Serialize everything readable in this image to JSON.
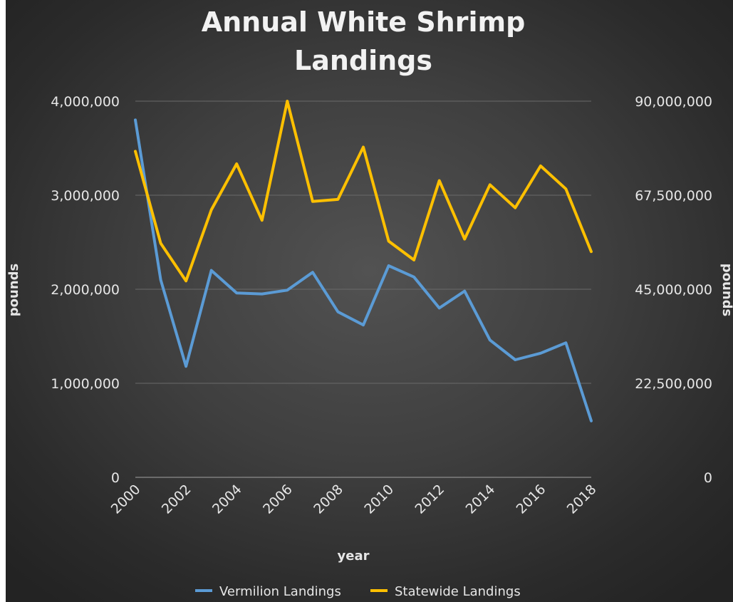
{
  "chart_data": {
    "type": "line",
    "title": [
      "Annual White Shrimp",
      "Landings"
    ],
    "xlabel": "year",
    "ylabel_left": "pounds",
    "ylabel_right": "pounds",
    "x": [
      2000,
      2001,
      2002,
      2003,
      2004,
      2005,
      2006,
      2007,
      2008,
      2009,
      2010,
      2011,
      2012,
      2013,
      2014,
      2015,
      2016,
      2017,
      2018
    ],
    "x_tick_labels": [
      "2000",
      "2002",
      "2004",
      "2006",
      "2008",
      "2010",
      "2012",
      "2014",
      "2016",
      "2018"
    ],
    "y_left": {
      "ylim": [
        0,
        4000000
      ],
      "ticks": [
        "0",
        "1,000,000",
        "2,000,000",
        "3,000,000",
        "4,000,000"
      ]
    },
    "y_right": {
      "ylim": [
        0,
        90000000
      ],
      "ticks": [
        "0",
        "22,500,000",
        "45,000,000",
        "67,500,000",
        "90,000,000"
      ]
    },
    "series": [
      {
        "name": "Vermilion Landings",
        "axis": "left",
        "color": "#5b9bd5",
        "values": [
          3800000,
          2100000,
          1180000,
          2200000,
          1960000,
          1950000,
          1990000,
          2180000,
          1760000,
          1620000,
          2250000,
          2130000,
          1800000,
          1980000,
          1460000,
          1250000,
          1320000,
          1430000,
          600000
        ]
      },
      {
        "name": "Statewide Landings",
        "axis": "right",
        "color": "#ffc000",
        "values": [
          78000000,
          56000000,
          47000000,
          64000000,
          75000000,
          61500000,
          90000000,
          66000000,
          66500000,
          79000000,
          56500000,
          52000000,
          71000000,
          57000000,
          70000000,
          64500000,
          74500000,
          69000000,
          54000000
        ]
      }
    ],
    "grid": true,
    "legend_position": "bottom"
  }
}
